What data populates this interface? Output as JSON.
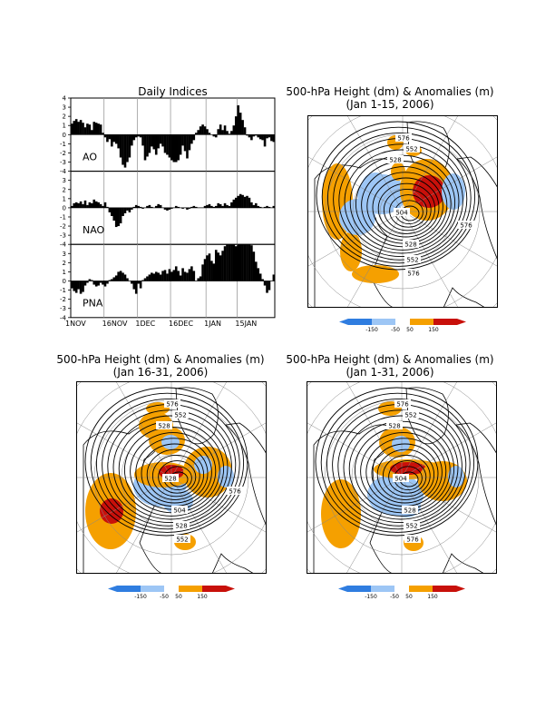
{
  "indices": {
    "title": "Daily Indices",
    "panels": [
      "AO",
      "NAO",
      "PNA"
    ],
    "y_ticks": [
      4,
      3,
      2,
      1,
      0,
      -1,
      -2,
      -3,
      -4
    ],
    "x_ticks": [
      "1NOV",
      "16NOV",
      "1DEC",
      "16DEC",
      "1JAN",
      "15JAN"
    ]
  },
  "chart_data": [
    {
      "type": "bar",
      "title": "Daily Indices",
      "ylim": [
        -4,
        4
      ],
      "x": "daily, 1 Nov 2005 - 31 Jan 2006",
      "series": [
        {
          "name": "AO",
          "values": [
            1.2,
            1.5,
            1.7,
            1.4,
            1.6,
            1.3,
            0.8,
            1.2,
            1.1,
            0.5,
            1.4,
            1.3,
            1.2,
            1.1,
            0.2,
            -0.3,
            -0.8,
            -0.5,
            -1.3,
            -0.8,
            -1.0,
            -1.5,
            -2.5,
            -3.3,
            -3.6,
            -3.0,
            -2.5,
            -1.2,
            -0.6,
            -0.3,
            -0.2,
            -0.3,
            -1.2,
            -2.8,
            -2.4,
            -2.0,
            -1.3,
            -1.6,
            -2.2,
            -1.5,
            -1.0,
            -1.3,
            -2.0,
            -2.2,
            -2.5,
            -2.8,
            -3.0,
            -3.0,
            -2.8,
            -2.2,
            -1.2,
            -1.8,
            -2.6,
            -1.7,
            -1.0,
            -0.6,
            0.2,
            0.5,
            0.9,
            1.1,
            0.9,
            0.6,
            0.2,
            0.0,
            -0.2,
            -0.3,
            0.6,
            1.1,
            0.5,
            1.0,
            0.4,
            0.1,
            0.4,
            1.0,
            2.0,
            3.2,
            2.4,
            1.6,
            0.8,
            -0.1,
            -0.3,
            -0.6,
            -0.2,
            -0.1,
            -0.3,
            -0.5,
            -0.6,
            -1.3,
            -0.4,
            -0.3,
            -0.7,
            -0.8
          ]
        },
        {
          "name": "NAO",
          "values": [
            0.2,
            0.5,
            0.6,
            0.5,
            0.7,
            0.4,
            0.8,
            0.3,
            0.6,
            0.5,
            0.9,
            0.7,
            0.6,
            0.4,
            0.2,
            0.6,
            0.1,
            -0.5,
            -0.9,
            -1.4,
            -2.1,
            -2.0,
            -1.7,
            -0.9,
            -0.6,
            -0.3,
            -0.5,
            -0.2,
            0.1,
            0.3,
            0.2,
            0.1,
            -0.1,
            0.0,
            0.2,
            0.3,
            0.1,
            0.0,
            0.2,
            0.4,
            0.3,
            0.0,
            -0.2,
            -0.3,
            -0.2,
            -0.1,
            0.0,
            0.2,
            0.1,
            0.0,
            -0.1,
            0.0,
            -0.2,
            -0.1,
            0.1,
            0.2,
            0.1,
            0.0,
            0.0,
            0.0,
            0.2,
            0.3,
            0.4,
            0.2,
            0.1,
            0.2,
            0.5,
            0.4,
            0.2,
            0.5,
            0.3,
            0.2,
            0.6,
            0.9,
            1.1,
            1.3,
            1.5,
            1.4,
            1.2,
            1.3,
            1.1,
            0.6,
            0.3,
            0.5,
            0.2,
            0.1,
            0.0,
            0.1,
            0.2,
            0.1,
            0.0,
            0.2
          ]
        },
        {
          "name": "PNA",
          "values": [
            -0.8,
            -1.1,
            -1.3,
            -0.9,
            -1.4,
            -1.2,
            -0.5,
            -0.2,
            0.2,
            0.1,
            -0.4,
            -0.6,
            -0.5,
            -0.2,
            -0.4,
            -0.6,
            -0.3,
            0.1,
            0.2,
            0.4,
            0.6,
            1.0,
            1.1,
            0.9,
            0.7,
            0.3,
            0.0,
            -0.3,
            -0.9,
            -1.4,
            -0.3,
            -0.8,
            0.1,
            0.3,
            0.5,
            0.7,
            0.9,
            0.8,
            1.0,
            0.9,
            0.7,
            1.1,
            1.2,
            0.8,
            1.3,
            1.0,
            1.2,
            1.6,
            1.1,
            0.6,
            1.4,
            1.0,
            0.9,
            1.3,
            1.6,
            1.1,
            0.0,
            0.3,
            0.5,
            1.8,
            2.4,
            2.8,
            3.0,
            2.2,
            1.9,
            3.4,
            3.1,
            2.8,
            3.3,
            3.8,
            4.0,
            4.0,
            4.0,
            4.0,
            3.8,
            4.0,
            4.0,
            4.0,
            4.0,
            4.0,
            4.0,
            3.9,
            3.2,
            2.1,
            1.4,
            0.8,
            0.2,
            -0.5,
            -1.3,
            -1.0,
            0.0,
            0.7
          ]
        }
      ]
    },
    {
      "type": "heatmap",
      "title": "500-hPa Height (dm) & Anomalies (m) (Jan 1-15, 2006)",
      "contours_dm": [
        "504",
        "528",
        "552",
        "576"
      ],
      "anomaly_levels_m": [
        -150,
        -50,
        50,
        150
      ]
    },
    {
      "type": "heatmap",
      "title": "500-hPa Height (dm) & Anomalies (m) (Jan 16-31, 2006)",
      "contours_dm": [
        "504",
        "528",
        "552",
        "576"
      ],
      "anomaly_levels_m": [
        -150,
        -50,
        50,
        150
      ]
    },
    {
      "type": "heatmap",
      "title": "500-hPa Height (dm) & Anomalies (m) (Jan 1-31, 2006)",
      "contours_dm": [
        "504",
        "528",
        "552",
        "576"
      ],
      "anomaly_levels_m": [
        -150,
        -50,
        50,
        150
      ]
    }
  ],
  "maps": [
    {
      "title_1": "500-hPa Height (dm) & Anomalies (m)",
      "title_2": "(Jan 1-15, 2006)",
      "labels": [
        "576",
        "552",
        "528",
        "504",
        "528",
        "552",
        "576",
        "576"
      ],
      "legend": [
        "-150",
        "-50",
        "50",
        "150"
      ]
    },
    {
      "title_1": "500-hPa Height (dm) & Anomalies (m)",
      "title_2": "(Jan 16-31, 2006)",
      "labels": [
        "576",
        "552",
        "528",
        "528",
        "504",
        "528",
        "552",
        "576"
      ],
      "legend": [
        "-150",
        "-50",
        "50",
        "150"
      ]
    },
    {
      "title_1": "500-hPa Height (dm) & Anomalies (m)",
      "title_2": "(Jan 1-31, 2006)",
      "labels": [
        "576",
        "552",
        "528",
        "504",
        "528",
        "552",
        "576"
      ],
      "legend": [
        "-150",
        "-50",
        "50",
        "150"
      ]
    }
  ],
  "colors": {
    "strong_negative": "#2f7de0",
    "negative": "#9dc6f5",
    "positive": "#f5a000",
    "strong_positive": "#c8100a",
    "bars": "#000000"
  }
}
